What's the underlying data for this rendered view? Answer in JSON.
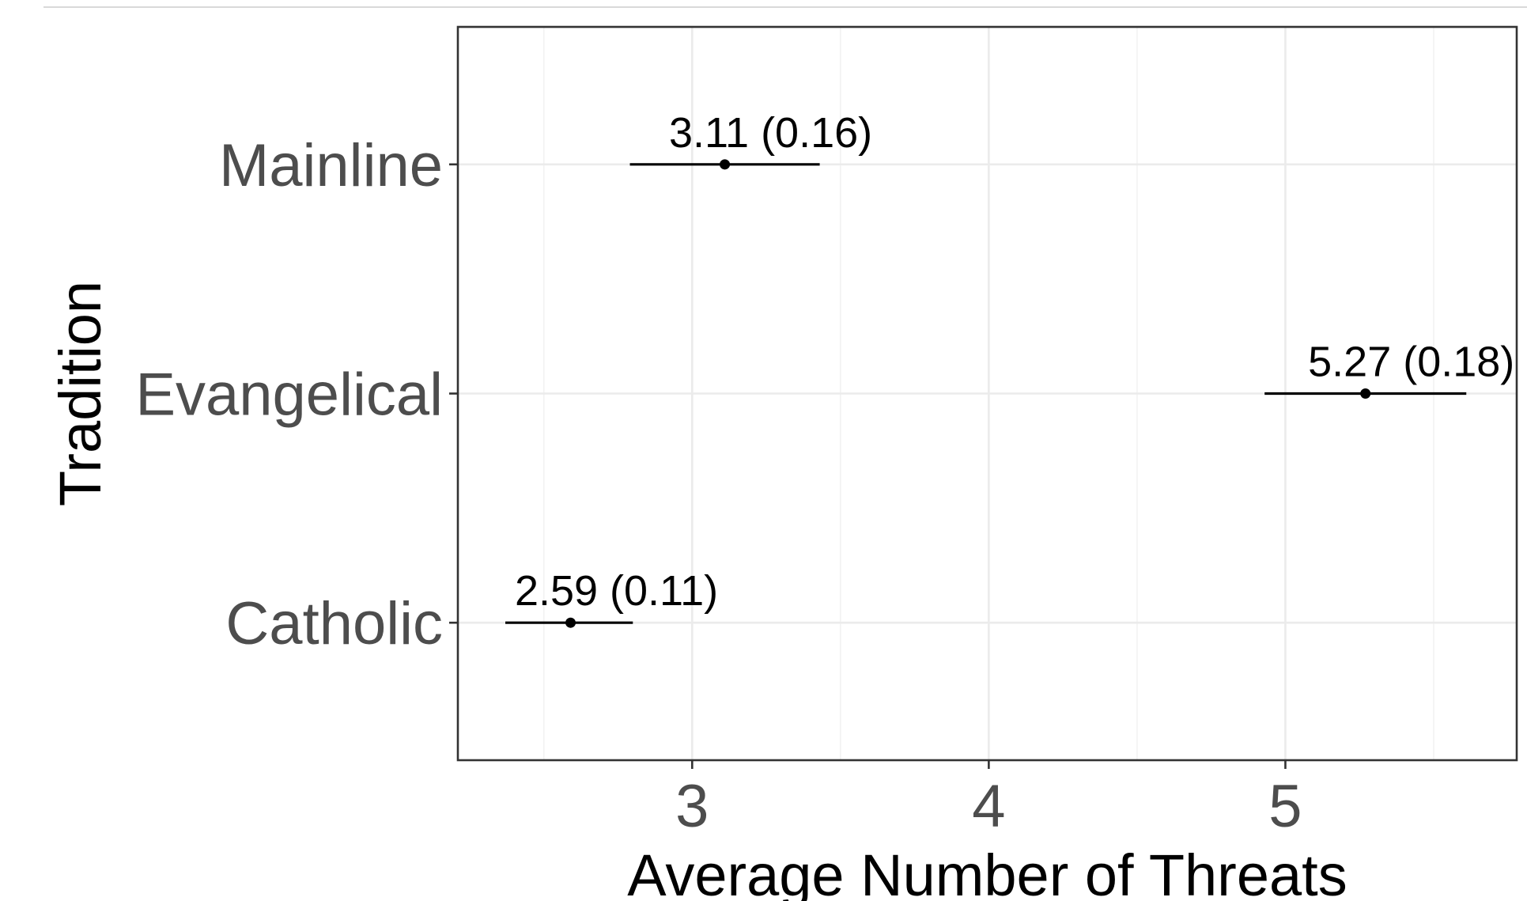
{
  "chart_data": {
    "type": "scatter",
    "title": "",
    "xlabel": "Average Number of Threats",
    "ylabel": "Tradition",
    "xlim": [
      2.21,
      5.78
    ],
    "xticks": [
      3,
      4,
      5
    ],
    "xtick_labels": [
      "3",
      "4",
      "5"
    ],
    "categories": [
      "Mainline",
      "Evangelical",
      "Catholic"
    ],
    "points": [
      {
        "category": "Mainline",
        "mean": 3.11,
        "se": 0.16,
        "lo": 2.79,
        "hi": 3.43,
        "label": "3.11 (0.16)"
      },
      {
        "category": "Evangelical",
        "mean": 5.27,
        "se": 0.18,
        "lo": 4.93,
        "hi": 5.61,
        "label": "5.27 (0.18)"
      },
      {
        "category": "Catholic",
        "mean": 2.59,
        "se": 0.11,
        "lo": 2.37,
        "hi": 2.8,
        "label": "2.59 (0.11)"
      }
    ],
    "grid": true,
    "legend": "none"
  }
}
